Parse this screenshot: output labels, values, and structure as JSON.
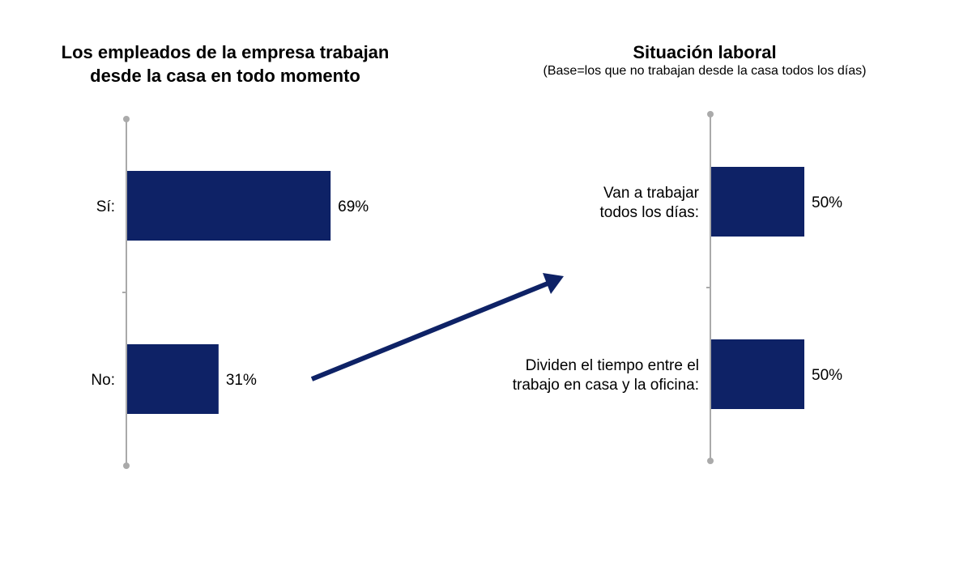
{
  "chart_data": [
    {
      "type": "bar",
      "title": "Los empleados de la empresa trabajan desde la casa en todo momento",
      "title_lines": [
        "Los empleados de la empresa trabajan",
        "desde la casa en todo momento"
      ],
      "categories": [
        "Sí:",
        "No:"
      ],
      "values": [
        69,
        31
      ],
      "value_labels": [
        "69%",
        "31%"
      ],
      "xlim": [
        0,
        100
      ],
      "bar_color": "#0e2266",
      "axis_color": "#aaaaaa",
      "grid": false
    },
    {
      "type": "bar",
      "title": "Situación laboral",
      "subtitle": "(Base=los que no trabajan desde la casa todos los días)",
      "categories": [
        "Van a trabajar todos los días:",
        "Dividen el tiempo entre el trabajo en casa y la oficina:"
      ],
      "category_lines": [
        [
          "Van a trabajar",
          "todos los días:"
        ],
        [
          "Dividen el tiempo entre el",
          "trabajo en casa y la oficina:"
        ]
      ],
      "values": [
        50,
        50
      ],
      "value_labels": [
        "50%",
        "50%"
      ],
      "xlim": [
        0,
        100
      ],
      "bar_color": "#0e2266",
      "axis_color": "#aaaaaa",
      "grid": false
    }
  ],
  "arrow_color": "#0e2266"
}
